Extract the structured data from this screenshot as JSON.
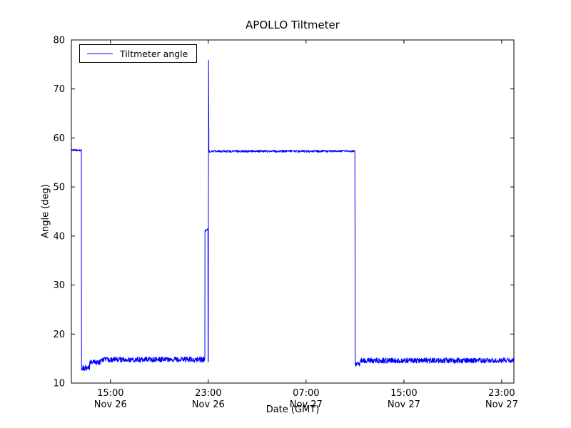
{
  "chart_data": {
    "type": "line",
    "title": "APOLLO Tiltmeter",
    "xlabel": "Date (GMT)",
    "ylabel": "Angle (deg)",
    "legend_label": "Tiltmeter angle",
    "legend_position": "upper left",
    "line_color": "#0000ff",
    "ylim": [
      10,
      80
    ],
    "xlim": [
      11.8,
      48.0
    ],
    "y_ticks": [
      10,
      20,
      30,
      40,
      50,
      60,
      70,
      80
    ],
    "x_ticks": [
      {
        "h": 15,
        "line1": "15:00",
        "line2": "Nov 26"
      },
      {
        "h": 23,
        "line1": "23:00",
        "line2": "Nov 26"
      },
      {
        "h": 31,
        "line1": "07:00",
        "line2": "Nov 27"
      },
      {
        "h": 39,
        "line1": "15:00",
        "line2": "Nov 27"
      },
      {
        "h": 47,
        "line1": "23:00",
        "line2": "Nov 27"
      }
    ],
    "x_unit": "hours since Nov 26 00:00 GMT",
    "segments": [
      {
        "from_h": 11.8,
        "to_h": 12.62,
        "angle": 57.5,
        "noise": 0.18
      },
      {
        "from_h": 12.63,
        "to_h": 13.3,
        "angle": 13.1,
        "noise": 0.6
      },
      {
        "from_h": 13.3,
        "to_h": 14.2,
        "angle": 14.2,
        "noise": 0.5
      },
      {
        "from_h": 14.2,
        "to_h": 22.72,
        "angle": 14.8,
        "noise": 0.55
      },
      {
        "from_h": 22.73,
        "to_h": 22.97,
        "angle": 41.2,
        "noise": 0.3
      },
      {
        "from_h": 22.98,
        "to_h": 23.01,
        "angle": 14.5,
        "noise": 0.3
      },
      {
        "from_h": 23.02,
        "to_h": 23.03,
        "angle": 75.8,
        "noise": 0.2
      },
      {
        "from_h": 23.05,
        "to_h": 35.0,
        "angle": 57.3,
        "noise": 0.22
      },
      {
        "from_h": 35.02,
        "to_h": 35.4,
        "angle": 13.9,
        "noise": 0.45
      },
      {
        "from_h": 35.4,
        "to_h": 48.0,
        "angle": 14.6,
        "noise": 0.55
      }
    ]
  }
}
